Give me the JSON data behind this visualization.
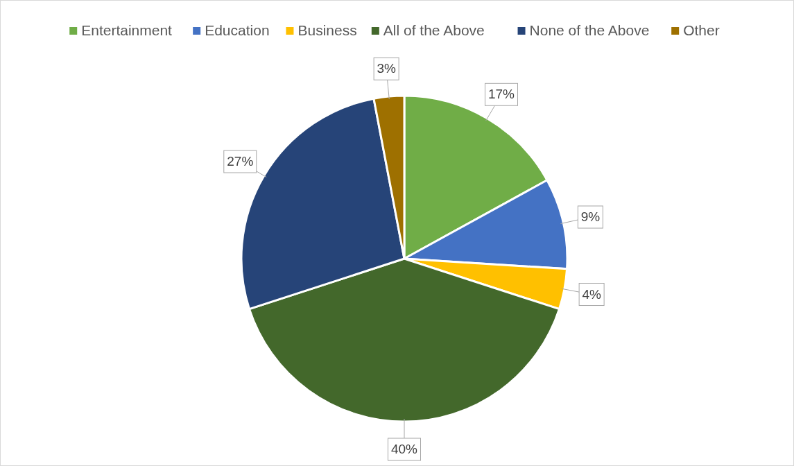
{
  "chart_data": {
    "type": "pie",
    "categories": [
      "Entertainment",
      "Education",
      "Business",
      "All of the Above",
      "None of the Above",
      "Other"
    ],
    "values": [
      17,
      9,
      4,
      40,
      27,
      3
    ],
    "colors": [
      "#70ad47",
      "#4472c4",
      "#ffc000",
      "#43682b",
      "#264478",
      "#9e7000"
    ],
    "value_labels": [
      "17%",
      "9%",
      "4%",
      "40%",
      "27%",
      "3%"
    ],
    "legend": "top"
  }
}
